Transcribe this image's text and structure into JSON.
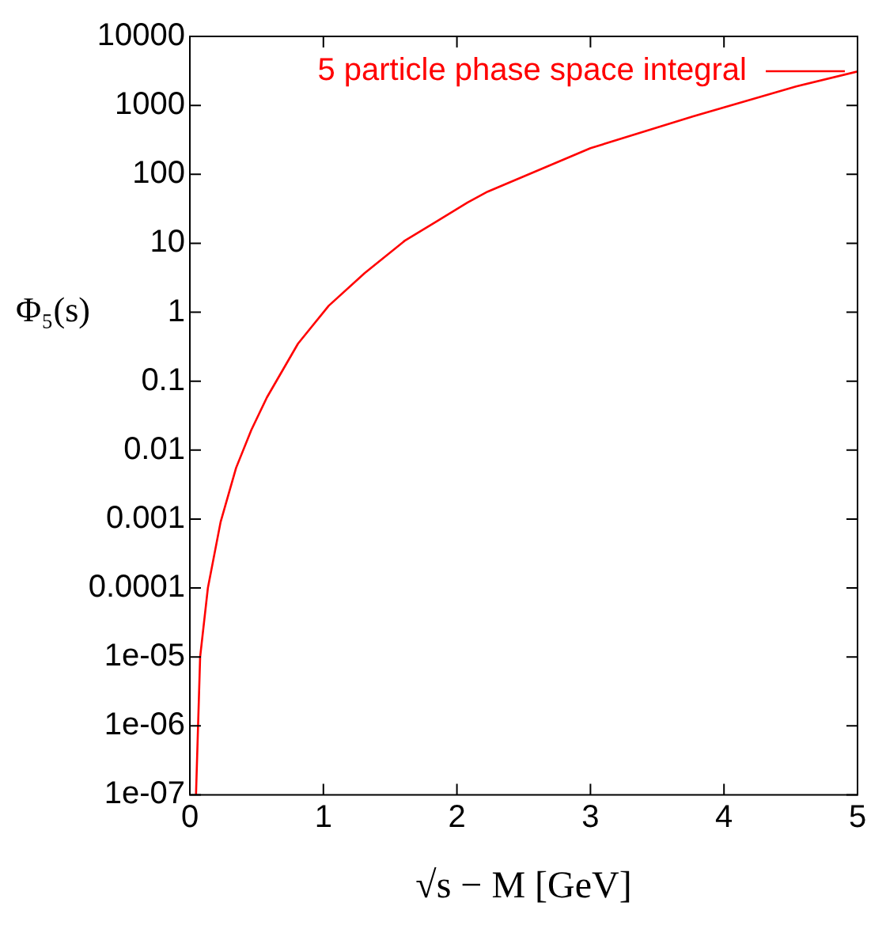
{
  "chart_data": {
    "type": "line",
    "xlabel": "√s − M [GeV]",
    "ylabel": "Φ₅(s)",
    "series": [
      {
        "name": "5 particle phase space integral",
        "color": "#ff0000",
        "x": [
          0.046,
          0.077,
          0.135,
          0.23,
          0.346,
          0.46,
          0.577,
          0.81,
          1.04,
          1.31,
          1.61,
          1.845,
          2.08,
          2.23,
          3.0,
          3.77,
          4.54,
          5.0
        ],
        "values": [
          1e-07,
          1e-05,
          0.0001,
          0.0009,
          0.0055,
          0.0195,
          0.058,
          0.35,
          1.24,
          3.7,
          10.9,
          20.6,
          39,
          56,
          239,
          695,
          1880,
          3100
        ]
      }
    ],
    "xlim": [
      0,
      5
    ],
    "xticks": [
      0,
      1,
      2,
      3,
      4,
      5
    ],
    "ylim": [
      1e-07,
      10000
    ],
    "yticks": [
      {
        "value": 1e-07,
        "label": "1e-07"
      },
      {
        "value": 1e-06,
        "label": "1e-06"
      },
      {
        "value": 1e-05,
        "label": "1e-05"
      },
      0.0001,
      0.001,
      0.01,
      0.1,
      1,
      10,
      100,
      1000,
      10000
    ],
    "log": "y",
    "grid": false,
    "legend": "top right",
    "marker": "none",
    "line_style": "solid"
  }
}
